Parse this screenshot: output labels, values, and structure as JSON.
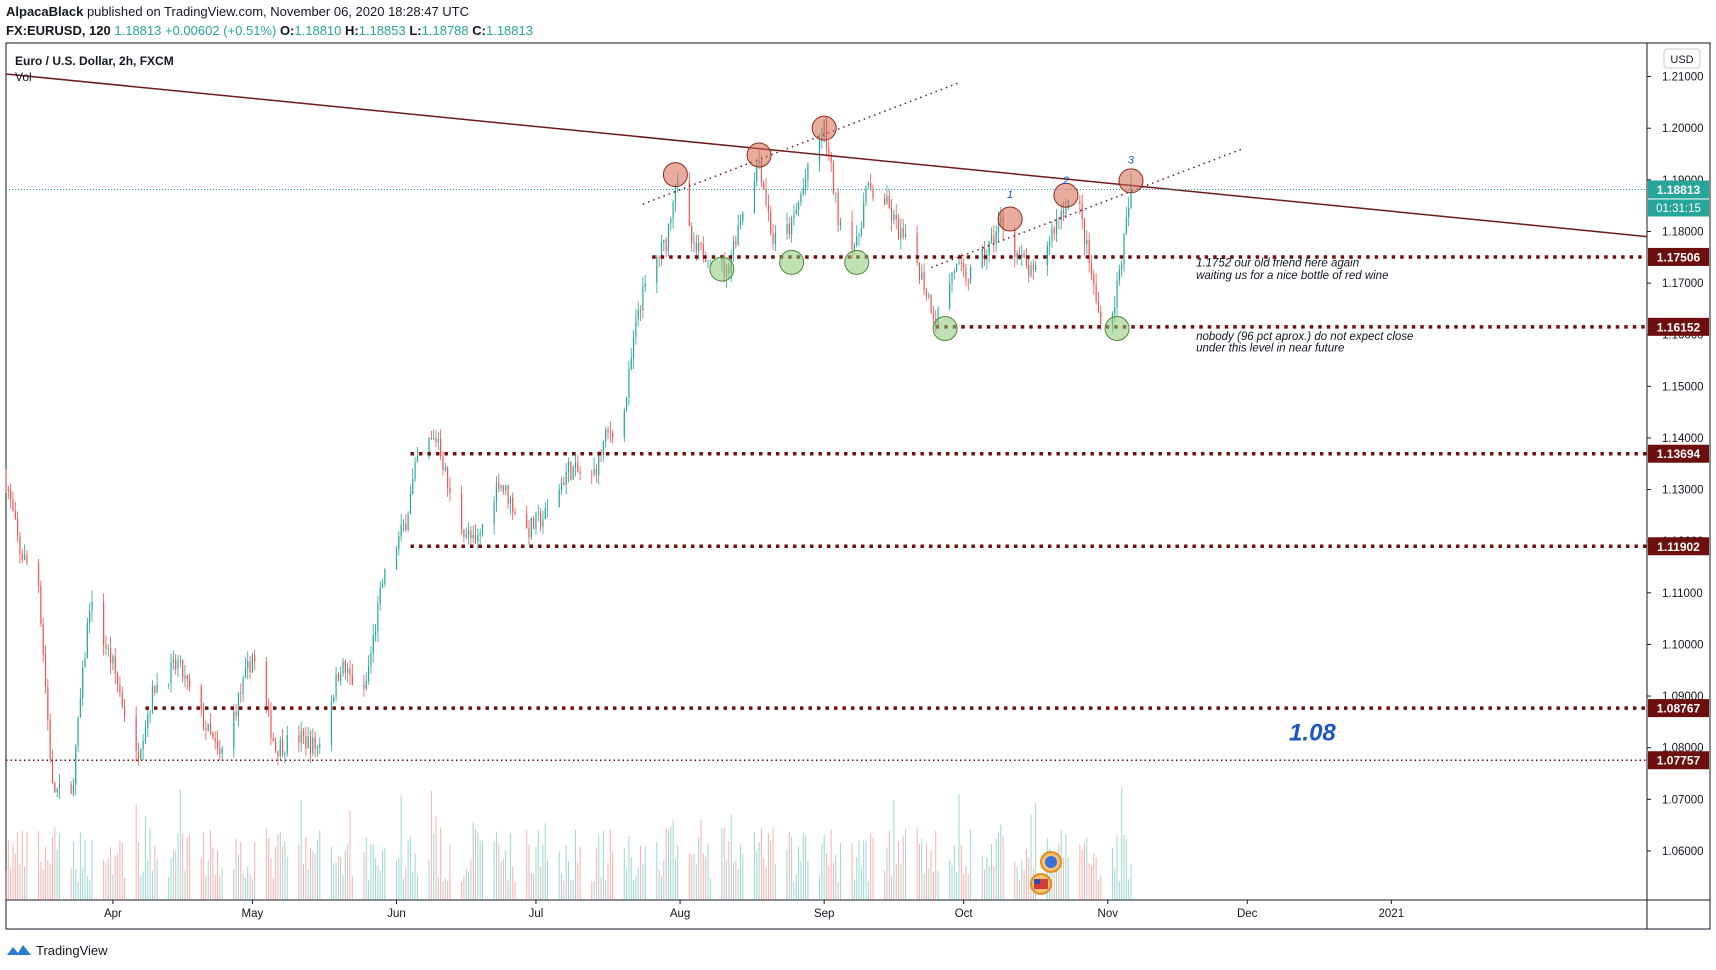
{
  "publish": {
    "author": "AlpacaBlack",
    "text": "published on TradingView.com, November 06, 2020 18:28:47 UTC"
  },
  "symbol_line": {
    "symbol": "FX:EURUSD, 120",
    "last": "1.18813",
    "change": "+0.00602 (+0.51%)",
    "o_label": "O:",
    "o": "1.18810",
    "h_label": "H:",
    "h": "1.18853",
    "l_label": "L:",
    "l": "1.18788",
    "c_label": "C:",
    "c": "1.18813"
  },
  "legend": {
    "title": "Euro / U.S. Dollar, 2h, FXCM",
    "indicator": "Vol"
  },
  "currency_button": "USD",
  "footer": {
    "brand": "TradingView"
  },
  "colors": {
    "up": "#26a69a",
    "down": "#ef5350",
    "level": "#6d0f0f",
    "trend": "#6d1a1a",
    "price_tag": "#26a69a",
    "annot_blue": "#1a56c4"
  },
  "chart_data": {
    "type": "candlestick",
    "title": "Euro / U.S. Dollar, 2h, FXCM",
    "symbol": "EURUSD",
    "interval": "2h",
    "x_ticks": [
      "Apr",
      "May",
      "Jun",
      "Jul",
      "Aug",
      "Sep",
      "Oct",
      "Nov",
      "Dec",
      "2021"
    ],
    "x_tick_dates": [
      "2020-04-01",
      "2020-05-01",
      "2020-06-01",
      "2020-07-01",
      "2020-08-01",
      "2020-09-01",
      "2020-10-01",
      "2020-11-01",
      "2020-12-01",
      "2021-01-01"
    ],
    "x_range": [
      "2020-03-09",
      "2021-02-25"
    ],
    "y_ticks": [
      "1.21000",
      "1.20000",
      "1.19000",
      "1.18000",
      "1.17000",
      "1.16000",
      "1.15000",
      "1.14000",
      "1.13000",
      "1.12000",
      "1.11000",
      "1.10000",
      "1.09000",
      "1.08000",
      "1.07000",
      "1.06000"
    ],
    "y_range": [
      1.0505,
      1.2165
    ],
    "last_price": "1.18813",
    "countdown": "01:31:15",
    "price_path": [
      [
        "2020-03-09",
        1.132
      ],
      [
        "2020-03-12",
        1.118
      ],
      [
        "2020-03-16",
        1.112
      ],
      [
        "2020-03-19",
        1.072
      ],
      [
        "2020-03-23",
        1.07
      ],
      [
        "2020-03-27",
        1.108
      ],
      [
        "2020-04-01",
        1.096
      ],
      [
        "2020-04-06",
        1.078
      ],
      [
        "2020-04-10",
        1.092
      ],
      [
        "2020-04-15",
        1.096
      ],
      [
        "2020-04-20",
        1.086
      ],
      [
        "2020-04-24",
        1.078
      ],
      [
        "2020-04-30",
        1.095
      ],
      [
        "2020-05-01",
        1.098
      ],
      [
        "2020-05-06",
        1.08
      ],
      [
        "2020-05-11",
        1.082
      ],
      [
        "2020-05-15",
        1.08
      ],
      [
        "2020-05-20",
        1.096
      ],
      [
        "2020-05-25",
        1.09
      ],
      [
        "2020-05-29",
        1.112
      ],
      [
        "2020-06-03",
        1.124
      ],
      [
        "2020-06-06",
        1.138
      ],
      [
        "2020-06-10",
        1.14
      ],
      [
        "2020-06-13",
        1.126
      ],
      [
        "2020-06-18",
        1.119
      ],
      [
        "2020-06-23",
        1.132
      ],
      [
        "2020-06-29",
        1.122
      ],
      [
        "2020-07-03",
        1.125
      ],
      [
        "2020-07-08",
        1.134
      ],
      [
        "2020-07-13",
        1.132
      ],
      [
        "2020-07-16",
        1.14
      ],
      [
        "2020-07-20",
        1.145
      ],
      [
        "2020-07-23",
        1.165
      ],
      [
        "2020-07-26",
        1.173
      ],
      [
        "2020-07-29",
        1.178
      ],
      [
        "2020-07-31",
        1.19
      ],
      [
        "2020-08-04",
        1.176
      ],
      [
        "2020-08-07",
        1.176
      ],
      [
        "2020-08-11",
        1.172
      ],
      [
        "2020-08-14",
        1.183
      ],
      [
        "2020-08-18",
        1.194
      ],
      [
        "2020-08-21",
        1.178
      ],
      [
        "2020-08-25",
        1.181
      ],
      [
        "2020-08-28",
        1.19
      ],
      [
        "2020-09-01",
        1.2
      ],
      [
        "2020-09-04",
        1.183
      ],
      [
        "2020-09-08",
        1.177
      ],
      [
        "2020-09-10",
        1.188
      ],
      [
        "2020-09-14",
        1.186
      ],
      [
        "2020-09-17",
        1.18
      ],
      [
        "2020-09-21",
        1.174
      ],
      [
        "2020-09-25",
        1.163
      ],
      [
        "2020-09-29",
        1.173
      ],
      [
        "2020-10-02",
        1.171
      ],
      [
        "2020-10-06",
        1.176
      ],
      [
        "2020-10-09",
        1.182
      ],
      [
        "2020-10-13",
        1.175
      ],
      [
        "2020-10-16",
        1.171
      ],
      [
        "2020-10-20",
        1.18
      ],
      [
        "2020-10-23",
        1.186
      ],
      [
        "2020-10-26",
        1.184
      ],
      [
        "2020-10-28",
        1.174
      ],
      [
        "2020-10-30",
        1.164
      ],
      [
        "2020-11-02",
        1.164
      ],
      [
        "2020-11-04",
        1.175
      ],
      [
        "2020-11-06",
        1.188
      ]
    ],
    "levels": [
      {
        "value": 1.17506,
        "label": "1.17506",
        "from": "2020-07-26"
      },
      {
        "value": 1.16152,
        "label": "1.16152",
        "from": "2020-09-25"
      },
      {
        "value": 1.13694,
        "label": "1.13694",
        "from": "2020-06-04"
      },
      {
        "value": 1.11902,
        "label": "1.11902",
        "from": "2020-06-04"
      },
      {
        "value": 1.08767,
        "label": "1.08767",
        "from": "2020-04-08"
      },
      {
        "value": 1.07757,
        "label": "1.07757",
        "from": "2020-03-09"
      }
    ],
    "trendline": {
      "from": [
        "2020-03-09",
        1.2105
      ],
      "to": [
        "2021-02-25",
        1.179
      ]
    },
    "channel_lines": [
      {
        "from": [
          "2020-07-24",
          1.1853
        ],
        "to": [
          "2020-09-30",
          1.2088
        ]
      },
      {
        "from": [
          "2020-09-24",
          1.173
        ],
        "to": [
          "2020-11-30",
          1.196
        ]
      }
    ],
    "annotations": [
      {
        "text": "1.1752 our old friend here again",
        "at": [
          "2020-11-20",
          1.1732
        ]
      },
      {
        "text": "waiting us for a nice bottle of red wine",
        "at": [
          "2020-11-20",
          1.1708
        ]
      },
      {
        "text": "nobody (96 pct aprox.) do not expect close",
        "at": [
          "2020-11-20",
          1.159
        ]
      },
      {
        "text": "under this level in near future",
        "at": [
          "2020-11-20",
          1.1567
        ]
      },
      {
        "text": "1.08",
        "at": [
          "2020-12-10",
          1.0814
        ]
      }
    ],
    "wave_labels": [
      {
        "text": "1",
        "at": [
          "2020-10-11",
          1.1865
        ]
      },
      {
        "text": "2",
        "at": [
          "2020-10-23",
          1.1892
        ]
      },
      {
        "text": "3",
        "at": [
          "2020-11-06",
          1.1932
        ]
      }
    ],
    "top_circles": [
      [
        "2020-07-31",
        1.191
      ],
      [
        "2020-08-18",
        1.1948
      ],
      [
        "2020-09-01",
        1.2
      ],
      [
        "2020-10-11",
        1.1824
      ],
      [
        "2020-10-23",
        1.187
      ],
      [
        "2020-11-06",
        1.1898
      ]
    ],
    "bottom_circles": [
      [
        "2020-08-10",
        1.1727
      ],
      [
        "2020-08-25",
        1.174
      ],
      [
        "2020-09-08",
        1.174
      ],
      [
        "2020-09-27",
        1.1612
      ],
      [
        "2020-11-03",
        1.1612
      ]
    ]
  }
}
